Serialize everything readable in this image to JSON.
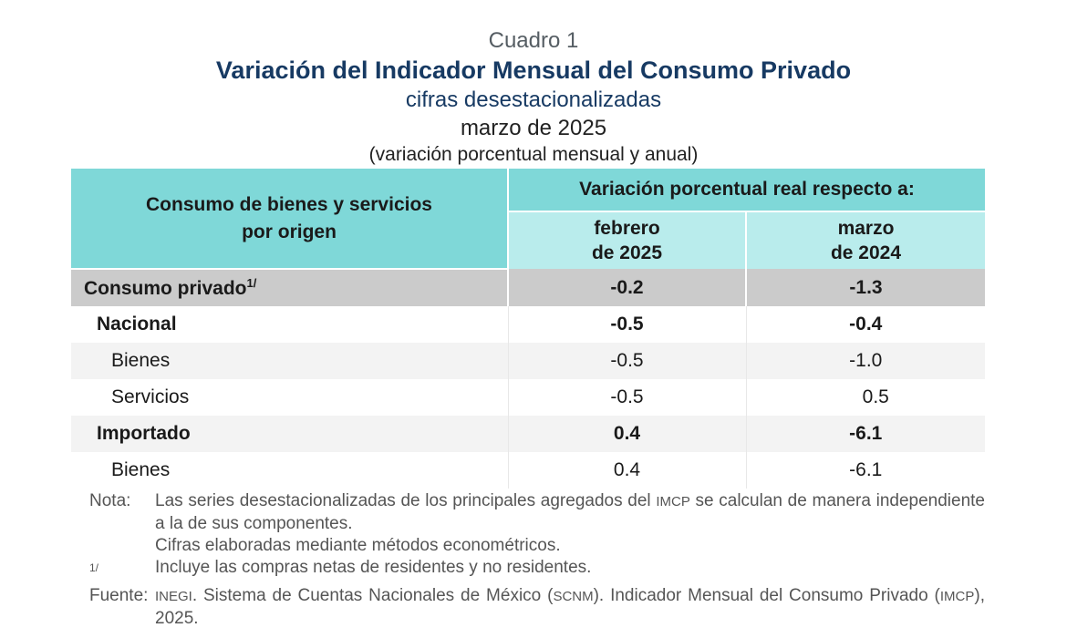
{
  "titles": {
    "cuadro": "Cuadro 1",
    "main": "Variación del Indicador Mensual del Consumo Privado",
    "sub": "cifras desestacionalizadas",
    "period": "marzo de 2025",
    "units": "(variación porcentual mensual y anual)"
  },
  "table": {
    "row_header_line1": "Consumo de bienes y servicios",
    "row_header_line2": "por origen",
    "group_header": "Variación porcentual real respecto a:",
    "col1_line1": "febrero",
    "col1_line2": "de 2025",
    "col2_line1": "marzo",
    "col2_line2": "de 2024",
    "rows": [
      {
        "label": "Consumo privado",
        "sup": "1/",
        "monthly": "-0.2",
        "annual": "-1.3"
      },
      {
        "label": "Nacional",
        "monthly": "-0.5",
        "annual": "-0.4"
      },
      {
        "label": "Bienes",
        "monthly": "-0.5",
        "annual": "-1.0"
      },
      {
        "label": "Servicios",
        "monthly": "-0.5",
        "annual": "0.5"
      },
      {
        "label": "Importado",
        "monthly": "0.4",
        "annual": "-6.1"
      },
      {
        "label": "Bienes",
        "monthly": "0.4",
        "annual": "-6.1"
      }
    ]
  },
  "notes": {
    "nota_label": "Nota:",
    "nota_text1_pre": "Las series desestacionalizadas de los principales agregados del ",
    "nota_text1_abbr": "IMCP",
    "nota_text1_post": " se calculan de manera independiente a la de sus componentes.",
    "nota_text2": "Cifras elaboradas mediante métodos econométricos.",
    "footnote_mark": "1/",
    "footnote_text": "Incluye las compras netas de residentes y no residentes.",
    "fuente_label": "Fuente:",
    "fuente_abbr1": "INEGI",
    "fuente_text_a": ". Sistema de Cuentas Nacionales de México (",
    "fuente_abbr2": "SCNM",
    "fuente_text_b": "). Indicador Mensual del Consumo Privado (",
    "fuente_abbr3": "IMCP",
    "fuente_text_c": "), 2025."
  }
}
